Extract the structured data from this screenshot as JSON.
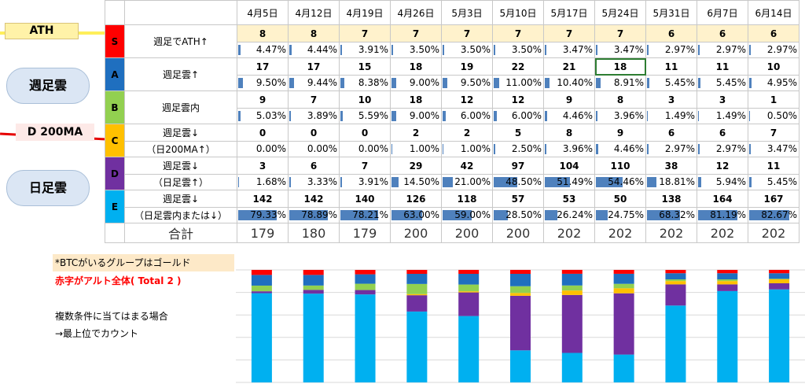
{
  "dates": [
    "4月5日",
    "4月12日",
    "4月19日",
    "4月26日",
    "5月3日",
    "5月10日",
    "5月17日",
    "5月24日",
    "5月31日",
    "6月7日",
    "6月14日"
  ],
  "groups": [
    {
      "label": "S",
      "desc1": "週足でATH↑",
      "desc2": "",
      "values": [
        "8",
        "8",
        "7",
        "7",
        "7",
        "7",
        "7",
        "7",
        "6",
        "6",
        "6"
      ],
      "pcts": [
        "4.47%",
        "4.44%",
        "3.91%",
        "3.50%",
        "3.50%",
        "3.50%",
        "3.47%",
        "3.47%",
        "2.97%",
        "2.97%",
        "2.97%"
      ],
      "pct_values": [
        4.47,
        4.44,
        3.91,
        3.5,
        3.5,
        3.5,
        3.47,
        3.47,
        2.97,
        2.97,
        2.97
      ],
      "color": "#ff0000"
    },
    {
      "label": "A",
      "desc1": "週足雲↑",
      "desc2": "",
      "values": [
        "17",
        "17",
        "15",
        "18",
        "19",
        "22",
        "21",
        "18",
        "11",
        "11",
        "10"
      ],
      "pcts": [
        "9.50%",
        "9.44%",
        "8.38%",
        "9.00%",
        "9.50%",
        "11.00%",
        "10.40%",
        "8.91%",
        "5.45%",
        "5.45%",
        "4.95%"
      ],
      "pct_values": [
        9.5,
        9.44,
        8.38,
        9.0,
        9.5,
        11.0,
        10.4,
        8.91,
        5.45,
        5.45,
        4.95
      ],
      "color": "#1f6fbf"
    },
    {
      "label": "B",
      "desc1": "週足雲内",
      "desc2": "",
      "values": [
        "9",
        "7",
        "10",
        "18",
        "12",
        "12",
        "9",
        "8",
        "3",
        "3",
        "1"
      ],
      "pcts": [
        "5.03%",
        "3.89%",
        "5.59%",
        "9.00%",
        "6.00%",
        "6.00%",
        "4.46%",
        "3.96%",
        "1.49%",
        "1.49%",
        "0.50%"
      ],
      "pct_values": [
        5.03,
        3.89,
        5.59,
        9.0,
        6.0,
        6.0,
        4.46,
        3.96,
        1.49,
        1.49,
        0.5
      ],
      "color": "#92d050"
    },
    {
      "label": "C",
      "desc1": "週足雲↓",
      "desc2": "（日200MA↑）",
      "values": [
        "0",
        "0",
        "0",
        "2",
        "2",
        "5",
        "8",
        "9",
        "6",
        "6",
        "7"
      ],
      "pcts": [
        "0.00%",
        "0.00%",
        "0.00%",
        "1.00%",
        "1.00%",
        "2.50%",
        "3.96%",
        "4.46%",
        "2.97%",
        "2.97%",
        "3.47%"
      ],
      "pct_values": [
        0,
        0,
        0,
        1.0,
        1.0,
        2.5,
        3.96,
        4.46,
        2.97,
        2.97,
        3.47
      ],
      "color": "#ffc000"
    },
    {
      "label": "D",
      "desc1": "週足雲↓",
      "desc2": "（日足雲↑）",
      "values": [
        "3",
        "6",
        "7",
        "29",
        "42",
        "97",
        "104",
        "110",
        "38",
        "12",
        "11"
      ],
      "pcts": [
        "1.68%",
        "3.33%",
        "3.91%",
        "14.50%",
        "21.00%",
        "48.50%",
        "51.49%",
        "54.46%",
        "18.81%",
        "5.94%",
        "5.45%"
      ],
      "pct_values": [
        1.68,
        3.33,
        3.91,
        14.5,
        21.0,
        48.5,
        51.49,
        54.46,
        18.81,
        5.94,
        5.45
      ],
      "color": "#7030a0"
    },
    {
      "label": "E",
      "desc1": "週足雲↓",
      "desc2": "（日足雲内または↓）",
      "values": [
        "142",
        "142",
        "140",
        "126",
        "118",
        "57",
        "53",
        "50",
        "138",
        "164",
        "167"
      ],
      "pcts": [
        "79.33%",
        "78.89%",
        "78.21%",
        "63.00%",
        "59.00%",
        "28.50%",
        "26.24%",
        "24.75%",
        "68.32%",
        "81.19%",
        "82.67%"
      ],
      "pct_values": [
        79.33,
        78.89,
        78.21,
        63.0,
        59.0,
        28.5,
        26.24,
        24.75,
        68.32,
        81.19,
        82.67
      ],
      "color": "#00b0f0"
    }
  ],
  "total": {
    "label": "合計",
    "values": [
      "179",
      "180",
      "179",
      "200",
      "200",
      "200",
      "202",
      "202",
      "202",
      "202",
      "202"
    ]
  },
  "tags": {
    "ath": "ATH",
    "weekly_cloud": "週足雲",
    "ma": "D 200MA",
    "daily_cloud": "日足雲"
  },
  "notes": {
    "btc": "*BTCがいるグループはゴールド",
    "red": "赤字がアルト全体( Total 2 )",
    "multi": "複数条件に当てはまる場合",
    "top": "→最上位でカウント"
  },
  "chart_data": {
    "type": "bar",
    "stacked": true,
    "categories": [
      "4月5日",
      "4月12日",
      "4月19日",
      "4月26日",
      "5月3日",
      "5月10日",
      "5月17日",
      "5月24日",
      "5月31日",
      "6月7日",
      "6月14日"
    ],
    "series": [
      {
        "name": "S",
        "color": "#ff0000",
        "values": [
          4.47,
          4.44,
          3.91,
          3.5,
          3.5,
          3.5,
          3.47,
          3.47,
          2.97,
          2.97,
          2.97
        ]
      },
      {
        "name": "A",
        "color": "#1f6fbf",
        "values": [
          9.5,
          9.44,
          8.38,
          9.0,
          9.5,
          11.0,
          10.4,
          8.91,
          5.45,
          5.45,
          4.95
        ]
      },
      {
        "name": "B",
        "color": "#92d050",
        "values": [
          5.03,
          3.89,
          5.59,
          9.0,
          6.0,
          6.0,
          4.46,
          3.96,
          1.49,
          1.49,
          0.5
        ]
      },
      {
        "name": "C",
        "color": "#ffc000",
        "values": [
          0,
          0,
          0,
          1.0,
          1.0,
          2.5,
          3.96,
          4.46,
          2.97,
          2.97,
          3.47
        ]
      },
      {
        "name": "D",
        "color": "#7030a0",
        "values": [
          1.68,
          3.33,
          3.91,
          14.5,
          21.0,
          48.5,
          51.49,
          54.46,
          18.81,
          5.94,
          5.45
        ]
      },
      {
        "name": "E",
        "color": "#00b0f0",
        "values": [
          79.33,
          78.89,
          78.21,
          63.0,
          59.0,
          28.5,
          26.24,
          24.75,
          68.32,
          81.19,
          82.67
        ]
      }
    ],
    "ylim": [
      0,
      100
    ],
    "grid": true,
    "legend": "none"
  }
}
